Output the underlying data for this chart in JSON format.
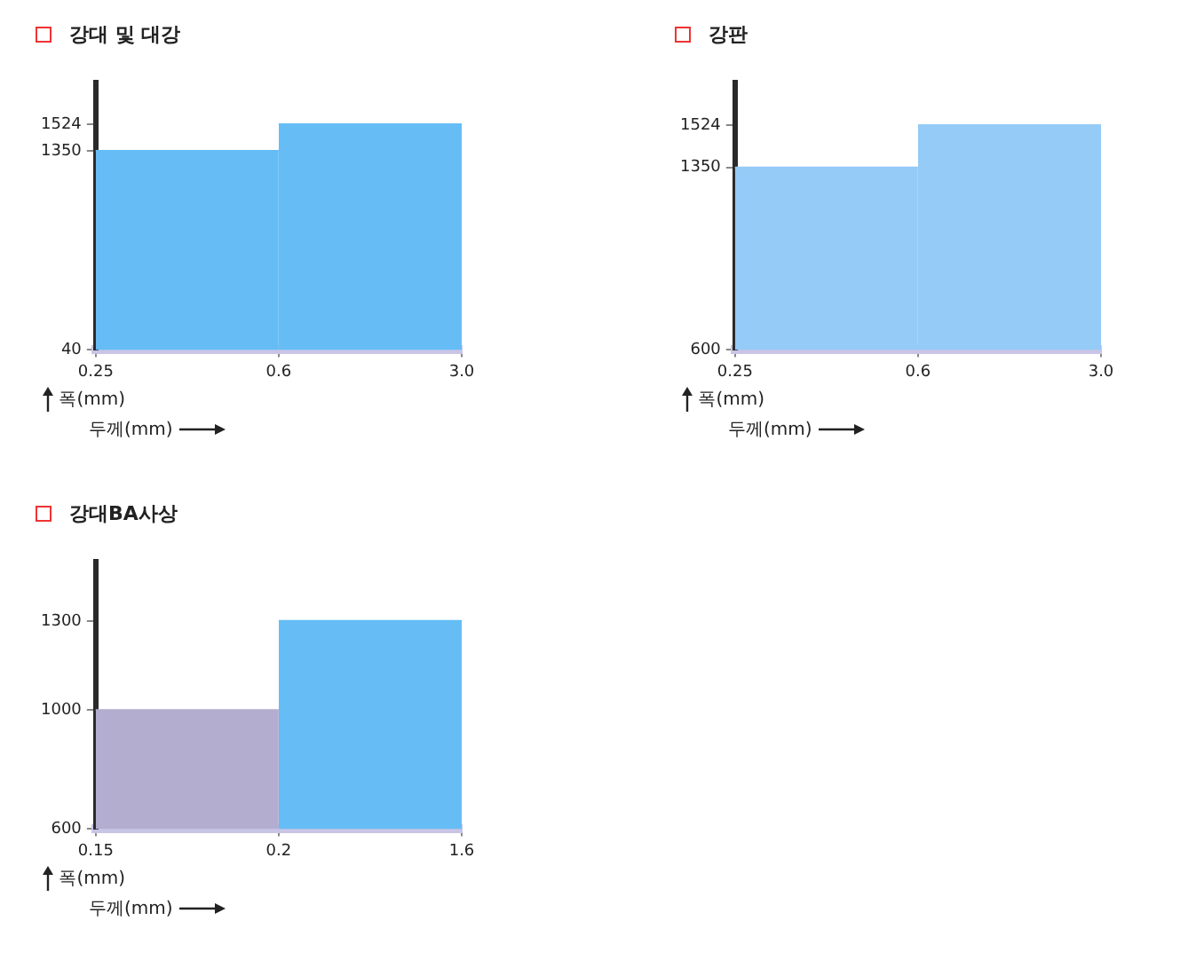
{
  "chart_data": [
    {
      "type": "area",
      "title": "강대 및 대강",
      "xlabel": "두께(mm)",
      "ylabel": "폭(mm)",
      "categories": [
        "0.25",
        "0.6",
        "3.0"
      ],
      "ylim": [
        40,
        1800
      ],
      "yticks": [
        40,
        1350,
        1524
      ],
      "series": [
        {
          "color": "#66bdf5",
          "values": [
            1350,
            1350,
            null
          ]
        },
        {
          "color": "#66bdf5",
          "values": [
            null,
            1524,
            1524
          ]
        }
      ]
    },
    {
      "type": "area",
      "title": "강판",
      "xlabel": "두께(mm)",
      "ylabel": "폭(mm)",
      "categories": [
        "0.25",
        "0.6",
        "3.0"
      ],
      "ylim": [
        600,
        1700
      ],
      "yticks": [
        600,
        1350,
        1524
      ],
      "series": [
        {
          "color": "#94cbf7",
          "values": [
            1350,
            1350,
            null
          ]
        },
        {
          "color": "#94cbf7",
          "values": [
            null,
            1524,
            1524
          ]
        }
      ]
    },
    {
      "type": "area",
      "title": "강대BA사상",
      "xlabel": "두께(mm)",
      "ylabel": "폭(mm)",
      "categories": [
        "0.15",
        "0.2",
        "1.6"
      ],
      "ylim": [
        600,
        1500
      ],
      "yticks": [
        600,
        1000,
        1300
      ],
      "series": [
        {
          "color": "#b3aed0",
          "values": [
            1000,
            1000,
            null
          ]
        },
        {
          "color": "#66bdf5",
          "values": [
            null,
            1300,
            1300
          ]
        }
      ]
    }
  ]
}
